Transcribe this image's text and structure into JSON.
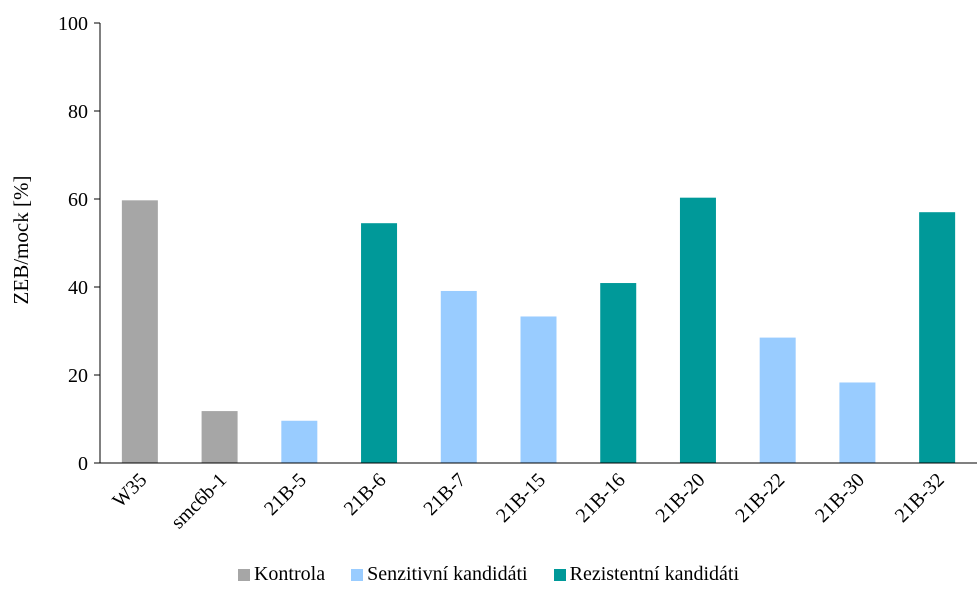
{
  "chart_data": {
    "type": "bar",
    "ylabel": "ZEB/mock [%]",
    "xlabel": "",
    "ylim": [
      0,
      100
    ],
    "yticks": [
      0,
      20,
      40,
      60,
      80,
      100
    ],
    "grid": false,
    "legend_position": "bottom",
    "categories": [
      "W35",
      "smc6b-1",
      "21B-5",
      "21B-6",
      "21B-7",
      "21B-15",
      "21B-16",
      "21B-20",
      "21B-22",
      "21B-30",
      "21B-32"
    ],
    "values": [
      59.7,
      11.8,
      9.6,
      54.5,
      39.1,
      33.3,
      40.9,
      60.3,
      28.5,
      18.3,
      57.0
    ],
    "groups": [
      0,
      0,
      1,
      2,
      1,
      1,
      2,
      2,
      1,
      1,
      2
    ],
    "series": [
      {
        "name": "Kontrola",
        "color": "#a6a6a6"
      },
      {
        "name": "Senzitivní kandidáti",
        "color": "#99ccff"
      },
      {
        "name": "Rezistentní kandidáti",
        "color": "#009999"
      }
    ]
  }
}
